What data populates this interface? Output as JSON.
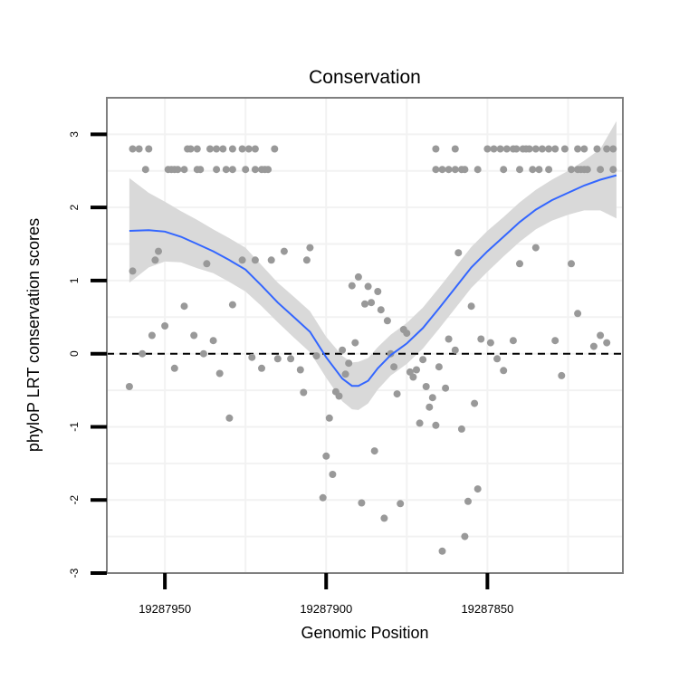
{
  "chart_data": {
    "type": "scatter",
    "title": "Conservation",
    "xlabel": "Genomic Position",
    "ylabel": "phyloP LRT conservation scores",
    "x_reversed": true,
    "xlim": [
      19287968,
      19287808
    ],
    "ylim": [
      -3,
      3.5
    ],
    "x_ticks": [
      {
        "value": 19287950,
        "label": "19287950"
      },
      {
        "value": 19287900,
        "label": "19287900"
      },
      {
        "value": 19287850,
        "label": "19287850"
      }
    ],
    "y_ticks": [
      {
        "value": -3,
        "label": "-3"
      },
      {
        "value": -2,
        "label": "-2"
      },
      {
        "value": -1,
        "label": "-1"
      },
      {
        "value": 0,
        "label": "0"
      },
      {
        "value": 1,
        "label": "1"
      },
      {
        "value": 2,
        "label": "2"
      },
      {
        "value": 3,
        "label": "3"
      }
    ],
    "reference_line": {
      "y": 0,
      "style": "dashed"
    },
    "colors": {
      "points": "#999999",
      "smooth": "#3366FF",
      "ribbon": "#D9D9D9",
      "border": "#7F7F7F",
      "grid": "#F2F2F2"
    },
    "points": [
      [
        19287960,
        2.8
      ],
      [
        19287958,
        2.8
      ],
      [
        19287955,
        2.8
      ],
      [
        19287943,
        2.8
      ],
      [
        19287942,
        2.8
      ],
      [
        19287940,
        2.8
      ],
      [
        19287936,
        2.8
      ],
      [
        19287934,
        2.8
      ],
      [
        19287932,
        2.8
      ],
      [
        19287929,
        2.8
      ],
      [
        19287926,
        2.8
      ],
      [
        19287924,
        2.8
      ],
      [
        19287922,
        2.8
      ],
      [
        19287916,
        2.8
      ],
      [
        19287956,
        2.52
      ],
      [
        19287949,
        2.52
      ],
      [
        19287948,
        2.52
      ],
      [
        19287947,
        2.52
      ],
      [
        19287946,
        2.52
      ],
      [
        19287944,
        2.52
      ],
      [
        19287940,
        2.52
      ],
      [
        19287939,
        2.52
      ],
      [
        19287934,
        2.52
      ],
      [
        19287931,
        2.52
      ],
      [
        19287929,
        2.52
      ],
      [
        19287925,
        2.52
      ],
      [
        19287922,
        2.52
      ],
      [
        19287920,
        2.52
      ],
      [
        19287919,
        2.52
      ],
      [
        19287918,
        2.52
      ],
      [
        19287866,
        2.8
      ],
      [
        19287860,
        2.8
      ],
      [
        19287850,
        2.8
      ],
      [
        19287848,
        2.8
      ],
      [
        19287846,
        2.8
      ],
      [
        19287844,
        2.8
      ],
      [
        19287842,
        2.8
      ],
      [
        19287841,
        2.8
      ],
      [
        19287839,
        2.8
      ],
      [
        19287838,
        2.8
      ],
      [
        19287837,
        2.8
      ],
      [
        19287835,
        2.8
      ],
      [
        19287833,
        2.8
      ],
      [
        19287831,
        2.8
      ],
      [
        19287829,
        2.8
      ],
      [
        19287826,
        2.8
      ],
      [
        19287822,
        2.8
      ],
      [
        19287820,
        2.8
      ],
      [
        19287816,
        2.8
      ],
      [
        19287813,
        2.8
      ],
      [
        19287811,
        2.8
      ],
      [
        19287866,
        2.52
      ],
      [
        19287864,
        2.52
      ],
      [
        19287862,
        2.52
      ],
      [
        19287860,
        2.52
      ],
      [
        19287858,
        2.52
      ],
      [
        19287857,
        2.52
      ],
      [
        19287853,
        2.52
      ],
      [
        19287845,
        2.52
      ],
      [
        19287840,
        2.52
      ],
      [
        19287836,
        2.52
      ],
      [
        19287834,
        2.52
      ],
      [
        19287831,
        2.52
      ],
      [
        19287824,
        2.52
      ],
      [
        19287822,
        2.52
      ],
      [
        19287821,
        2.52
      ],
      [
        19287820,
        2.52
      ],
      [
        19287819,
        2.52
      ],
      [
        19287815,
        2.52
      ],
      [
        19287811,
        2.52
      ],
      [
        19287961,
        -0.45
      ],
      [
        19287960,
        1.13
      ],
      [
        19287957,
        0.0
      ],
      [
        19287954,
        0.25
      ],
      [
        19287953,
        1.28
      ],
      [
        19287952,
        1.4
      ],
      [
        19287950,
        0.38
      ],
      [
        19287947,
        -0.2
      ],
      [
        19287944,
        0.65
      ],
      [
        19287941,
        0.25
      ],
      [
        19287938,
        0.0
      ],
      [
        19287937,
        1.23
      ],
      [
        19287935,
        0.18
      ],
      [
        19287933,
        -0.27
      ],
      [
        19287930,
        -0.88
      ],
      [
        19287929,
        0.67
      ],
      [
        19287926,
        1.28
      ],
      [
        19287923,
        -0.05
      ],
      [
        19287922,
        1.28
      ],
      [
        19287920,
        -0.2
      ],
      [
        19287917,
        1.28
      ],
      [
        19287915,
        -0.07
      ],
      [
        19287913,
        1.4
      ],
      [
        19287911,
        -0.07
      ],
      [
        19287908,
        -0.22
      ],
      [
        19287907,
        -0.53
      ],
      [
        19287906,
        1.28
      ],
      [
        19287905,
        1.45
      ],
      [
        19287903,
        -0.03
      ],
      [
        19287901,
        -1.97
      ],
      [
        19287900,
        -1.4
      ],
      [
        19287899,
        -0.88
      ],
      [
        19287898,
        -1.65
      ],
      [
        19287897,
        -0.52
      ],
      [
        19287896,
        -0.58
      ],
      [
        19287895,
        0.05
      ],
      [
        19287894,
        -0.28
      ],
      [
        19287893,
        -0.13
      ],
      [
        19287892,
        0.93
      ],
      [
        19287891,
        0.15
      ],
      [
        19287890,
        1.05
      ],
      [
        19287889,
        -2.04
      ],
      [
        19287888,
        0.68
      ],
      [
        19287887,
        0.92
      ],
      [
        19287886,
        0.7
      ],
      [
        19287885,
        -1.33
      ],
      [
        19287884,
        0.85
      ],
      [
        19287883,
        0.6
      ],
      [
        19287882,
        -2.25
      ],
      [
        19287881,
        0.45
      ],
      [
        19287880,
        0.0
      ],
      [
        19287879,
        -0.18
      ],
      [
        19287878,
        -0.55
      ],
      [
        19287877,
        -2.05
      ],
      [
        19287876,
        0.33
      ],
      [
        19287875,
        0.28
      ],
      [
        19287874,
        -0.25
      ],
      [
        19287873,
        -0.32
      ],
      [
        19287872,
        -0.22
      ],
      [
        19287871,
        -0.95
      ],
      [
        19287870,
        -0.08
      ],
      [
        19287869,
        -0.45
      ],
      [
        19287868,
        -0.73
      ],
      [
        19287867,
        -0.6
      ],
      [
        19287866,
        -0.98
      ],
      [
        19287865,
        -0.18
      ],
      [
        19287864,
        -2.7
      ],
      [
        19287863,
        -0.47
      ],
      [
        19287862,
        0.2
      ],
      [
        19287860,
        0.05
      ],
      [
        19287859,
        1.38
      ],
      [
        19287858,
        -1.03
      ],
      [
        19287857,
        -2.5
      ],
      [
        19287856,
        -2.02
      ],
      [
        19287855,
        0.65
      ],
      [
        19287854,
        -0.68
      ],
      [
        19287853,
        -1.85
      ],
      [
        19287852,
        0.2
      ],
      [
        19287849,
        0.15
      ],
      [
        19287847,
        -0.07
      ],
      [
        19287845,
        -0.23
      ],
      [
        19287842,
        0.18
      ],
      [
        19287840,
        1.23
      ],
      [
        19287835,
        1.45
      ],
      [
        19287829,
        0.18
      ],
      [
        19287827,
        -0.3
      ],
      [
        19287824,
        1.23
      ],
      [
        19287822,
        0.55
      ],
      [
        19287817,
        0.1
      ],
      [
        19287815,
        0.25
      ],
      [
        19287813,
        0.15
      ]
    ],
    "smooth_line": [
      [
        19287961,
        1.68
      ],
      [
        19287955,
        1.69
      ],
      [
        19287950,
        1.67
      ],
      [
        19287945,
        1.6
      ],
      [
        19287940,
        1.5
      ],
      [
        19287935,
        1.4
      ],
      [
        19287930,
        1.28
      ],
      [
        19287925,
        1.15
      ],
      [
        19287920,
        0.93
      ],
      [
        19287915,
        0.7
      ],
      [
        19287910,
        0.5
      ],
      [
        19287905,
        0.3
      ],
      [
        19287900,
        -0.05
      ],
      [
        19287895,
        -0.34
      ],
      [
        19287892,
        -0.44
      ],
      [
        19287890,
        -0.44
      ],
      [
        19287887,
        -0.37
      ],
      [
        19287884,
        -0.2
      ],
      [
        19287880,
        -0.02
      ],
      [
        19287875,
        0.14
      ],
      [
        19287870,
        0.35
      ],
      [
        19287865,
        0.62
      ],
      [
        19287860,
        0.9
      ],
      [
        19287855,
        1.18
      ],
      [
        19287850,
        1.4
      ],
      [
        19287845,
        1.6
      ],
      [
        19287840,
        1.8
      ],
      [
        19287835,
        1.97
      ],
      [
        19287830,
        2.1
      ],
      [
        19287825,
        2.2
      ],
      [
        19287820,
        2.3
      ],
      [
        19287815,
        2.38
      ],
      [
        19287810,
        2.44
      ]
    ],
    "ribbon": [
      [
        19287961,
        0.97,
        2.4
      ],
      [
        19287955,
        1.18,
        2.2
      ],
      [
        19287950,
        1.26,
        2.08
      ],
      [
        19287945,
        1.25,
        1.95
      ],
      [
        19287940,
        1.17,
        1.83
      ],
      [
        19287935,
        1.1,
        1.7
      ],
      [
        19287930,
        0.98,
        1.58
      ],
      [
        19287925,
        0.85,
        1.45
      ],
      [
        19287920,
        0.65,
        1.21
      ],
      [
        19287915,
        0.43,
        0.97
      ],
      [
        19287910,
        0.22,
        0.78
      ],
      [
        19287905,
        0.02,
        0.58
      ],
      [
        19287900,
        -0.33,
        0.23
      ],
      [
        19287895,
        -0.65,
        -0.03
      ],
      [
        19287892,
        -0.76,
        -0.12
      ],
      [
        19287890,
        -0.77,
        -0.11
      ],
      [
        19287887,
        -0.68,
        -0.06
      ],
      [
        19287884,
        -0.49,
        0.09
      ],
      [
        19287880,
        -0.3,
        0.26
      ],
      [
        19287875,
        -0.14,
        0.42
      ],
      [
        19287870,
        0.07,
        0.63
      ],
      [
        19287865,
        0.34,
        0.9
      ],
      [
        19287860,
        0.62,
        1.18
      ],
      [
        19287855,
        0.9,
        1.46
      ],
      [
        19287850,
        1.12,
        1.68
      ],
      [
        19287845,
        1.33,
        1.87
      ],
      [
        19287840,
        1.53,
        2.07
      ],
      [
        19287835,
        1.7,
        2.24
      ],
      [
        19287830,
        1.82,
        2.38
      ],
      [
        19287825,
        1.9,
        2.5
      ],
      [
        19287820,
        1.96,
        2.64
      ],
      [
        19287815,
        1.96,
        2.8
      ],
      [
        19287810,
        1.85,
        3.18
      ]
    ]
  }
}
